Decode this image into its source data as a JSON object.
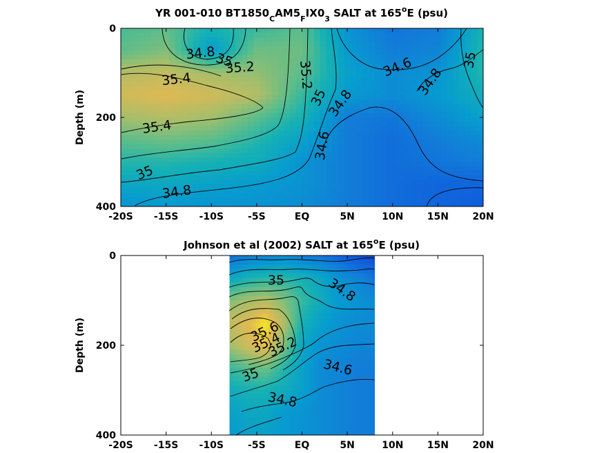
{
  "chart_data": [
    {
      "type": "heatmap",
      "title": "YR 001-010 BT1850_CAM5_FIX0_3 SALT at 165°E (psu)",
      "title_parts": {
        "main": "YR 001-010 BT1850",
        "sub1": "C",
        "mid1": "AM5",
        "sub2": "F",
        "mid2": "IX0",
        "sub3": "3",
        "end": " SALT at 165",
        "sup": "o",
        "tail": "E (psu)"
      },
      "xlabel": "",
      "ylabel": "Depth (m)",
      "x_ticks": [
        "-20S",
        "-15S",
        "-10S",
        "-5S",
        "EQ",
        "5N",
        "10N",
        "15N",
        "20N"
      ],
      "x_tick_values": [
        -20,
        -15,
        -10,
        -5,
        0,
        5,
        10,
        15,
        20
      ],
      "y_ticks": [
        "0",
        "200",
        "400"
      ],
      "y_tick_values": [
        0,
        200,
        400
      ],
      "xlim": [
        -20,
        20
      ],
      "ylim": [
        0,
        400
      ],
      "y_reversed": true,
      "colormap": "parula",
      "color_range": [
        34.2,
        35.8
      ],
      "data_extent": [
        -20,
        20
      ],
      "salinity_grid": {
        "x": [
          -20,
          -15,
          -10,
          -5,
          0,
          5,
          10,
          15,
          20
        ],
        "depth": [
          0,
          50,
          100,
          150,
          200,
          250,
          300,
          350,
          400
        ],
        "values": [
          [
            35.15,
            35.2,
            35.0,
            35.1,
            35.2,
            34.75,
            34.55,
            34.6,
            35.0
          ],
          [
            35.2,
            35.3,
            34.8,
            35.25,
            35.25,
            34.8,
            34.6,
            34.65,
            35.05
          ],
          [
            35.45,
            35.5,
            35.4,
            35.35,
            35.2,
            34.85,
            34.7,
            34.75,
            35.05
          ],
          [
            35.55,
            35.6,
            35.55,
            35.45,
            35.1,
            34.8,
            34.7,
            34.8,
            34.95
          ],
          [
            35.4,
            35.45,
            35.4,
            35.2,
            35.0,
            34.6,
            34.55,
            34.7,
            34.85
          ],
          [
            35.2,
            35.25,
            35.2,
            35.05,
            34.85,
            34.6,
            34.5,
            34.6,
            34.7
          ],
          [
            35.05,
            35.05,
            35.0,
            34.95,
            34.75,
            34.6,
            34.5,
            34.55,
            34.6
          ],
          [
            34.9,
            34.9,
            34.85,
            34.8,
            34.75,
            34.6,
            34.5,
            34.45,
            34.45
          ],
          [
            34.75,
            34.8,
            34.75,
            34.75,
            34.7,
            34.6,
            34.5,
            34.45,
            34.4
          ]
        ]
      },
      "contour_labels": [
        "34.8",
        "35",
        "35.2",
        "35.4",
        "35.2",
        "35",
        "34.8",
        "34.6",
        "34.6",
        "34.8",
        "35",
        "35.4",
        "35",
        "34.8"
      ]
    },
    {
      "type": "heatmap",
      "title": "Johnson et al (2002) SALT at 165°E (psu)",
      "title_parts": {
        "main": "Johnson et al (2002) SALT at 165",
        "sup": "o",
        "tail": "E (psu)"
      },
      "xlabel": "",
      "ylabel": "Depth (m)",
      "x_ticks": [
        "-20S",
        "-15S",
        "-10S",
        "-5S",
        "EQ",
        "5N",
        "10N",
        "15N",
        "20N"
      ],
      "x_tick_values": [
        -20,
        -15,
        -10,
        -5,
        0,
        5,
        10,
        15,
        20
      ],
      "y_ticks": [
        "0",
        "200",
        "400"
      ],
      "y_tick_values": [
        0,
        200,
        400
      ],
      "xlim": [
        -20,
        20
      ],
      "ylim": [
        0,
        400
      ],
      "y_reversed": true,
      "colormap": "parula",
      "color_range": [
        34.2,
        35.8
      ],
      "data_extent": [
        -8,
        8
      ],
      "salinity_grid": {
        "x": [
          -8,
          -6,
          -4,
          -2,
          0,
          2,
          4,
          6,
          8
        ],
        "depth": [
          0,
          50,
          100,
          150,
          200,
          250,
          300,
          350,
          400
        ],
        "values": [
          [
            34.5,
            34.6,
            34.65,
            34.7,
            34.6,
            34.55,
            34.45,
            34.35,
            34.3
          ],
          [
            34.9,
            35.0,
            35.05,
            35.05,
            35.0,
            34.9,
            34.75,
            34.65,
            34.55
          ],
          [
            35.3,
            35.4,
            35.45,
            35.3,
            35.1,
            34.95,
            34.8,
            34.75,
            34.7
          ],
          [
            35.5,
            35.6,
            35.75,
            35.45,
            35.0,
            34.85,
            34.75,
            34.7,
            34.7
          ],
          [
            35.4,
            35.55,
            35.65,
            35.3,
            34.9,
            34.75,
            34.7,
            34.65,
            34.65
          ],
          [
            35.1,
            35.2,
            35.25,
            35.05,
            34.85,
            34.7,
            34.65,
            34.6,
            34.6
          ],
          [
            34.95,
            35.0,
            35.0,
            34.95,
            34.85,
            34.7,
            34.65,
            34.6,
            34.6
          ],
          [
            34.85,
            34.9,
            34.9,
            34.8,
            34.75,
            34.7,
            34.65,
            34.6,
            34.6
          ],
          [
            34.8,
            34.85,
            34.85,
            34.8,
            34.75,
            34.7,
            34.65,
            34.6,
            34.6
          ]
        ]
      },
      "contour_labels": [
        "35",
        "34.8",
        "35.6",
        "35.4",
        "35.2",
        "35",
        "34.6",
        "34.8"
      ]
    }
  ]
}
